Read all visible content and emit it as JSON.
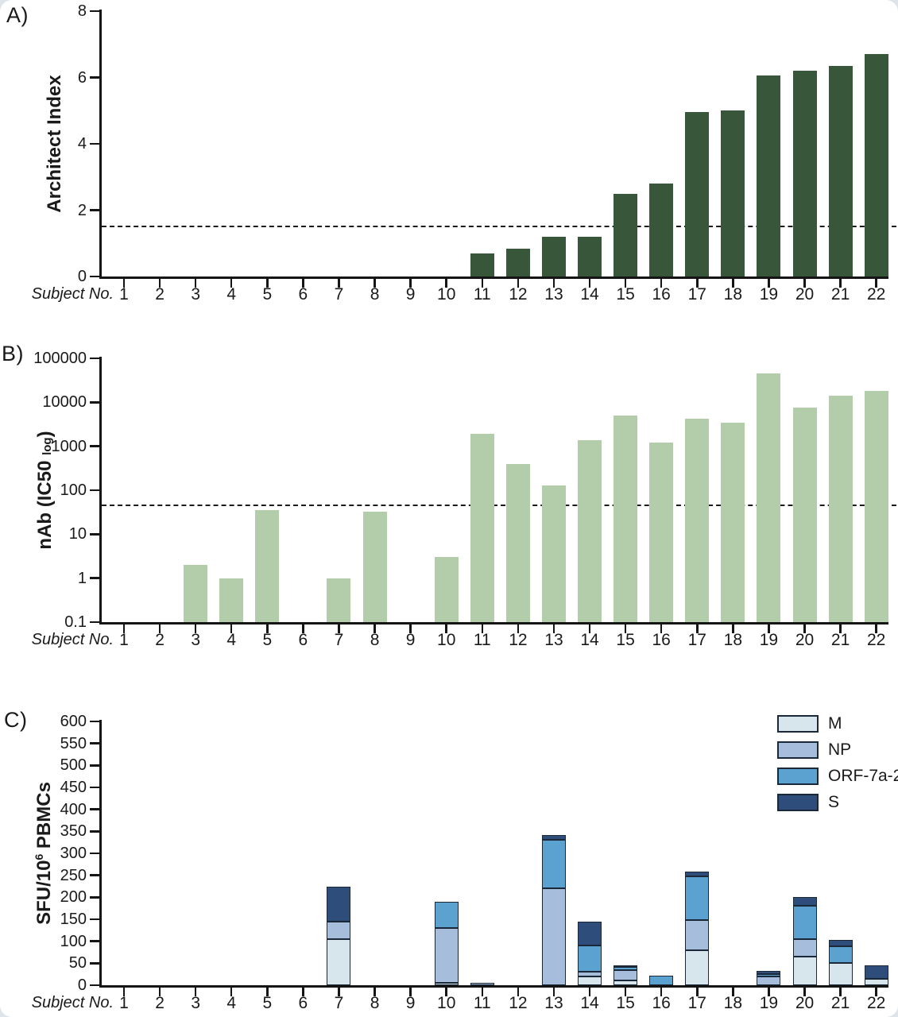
{
  "chart_data": [
    {
      "id": "A",
      "panel_label": "A)",
      "type": "bar",
      "ylabel_parts": [
        {
          "t": "Architect Index"
        }
      ],
      "xlabel": "Subject No.",
      "categories": [
        "1",
        "2",
        "3",
        "4",
        "5",
        "6",
        "7",
        "8",
        "9",
        "10",
        "11",
        "12",
        "13",
        "14",
        "15",
        "16",
        "17",
        "18",
        "19",
        "20",
        "21",
        "22"
      ],
      "values": [
        0,
        0,
        0,
        0,
        0,
        0,
        0,
        0,
        0,
        0,
        0.7,
        0.85,
        1.2,
        1.2,
        2.5,
        2.8,
        4.95,
        5.0,
        6.05,
        6.2,
        6.35,
        6.7
      ],
      "ylim": [
        0,
        8
      ],
      "yscale": "linear",
      "yticks": [
        {
          "label": "8",
          "value": 8
        },
        {
          "label": "6",
          "value": 6
        },
        {
          "label": "4",
          "value": 4
        },
        {
          "label": "2",
          "value": 2
        },
        {
          "label": "0",
          "value": 0
        }
      ],
      "threshold": 1.5,
      "bar_color": "#38573a",
      "grid": false,
      "legend_position": "none"
    },
    {
      "id": "B",
      "panel_label": "B)",
      "type": "bar",
      "ylabel_parts": [
        {
          "t": "nAb (IC50 "
        },
        {
          "t": "log",
          "style": "small"
        },
        {
          "t": ")"
        }
      ],
      "xlabel": "Subject No.",
      "categories": [
        "1",
        "2",
        "3",
        "4",
        "5",
        "6",
        "7",
        "8",
        "9",
        "10",
        "11",
        "12",
        "13",
        "14",
        "15",
        "16",
        "17",
        "18",
        "19",
        "20",
        "21",
        "22"
      ],
      "values": [
        0,
        0,
        2,
        1,
        35,
        0,
        1,
        32,
        0,
        3,
        1900,
        400,
        130,
        1400,
        5000,
        1200,
        4300,
        3400,
        45000,
        7500,
        14000,
        18000
      ],
      "ylim": [
        0.1,
        100000
      ],
      "yscale": "log",
      "yticks": [
        {
          "label": "100000",
          "value": 100000
        },
        {
          "label": "10000",
          "value": 10000
        },
        {
          "label": "1000",
          "value": 1000
        },
        {
          "label": "100",
          "value": 100
        },
        {
          "label": "10",
          "value": 10
        },
        {
          "label": "1",
          "value": 1
        },
        {
          "label": "0.1",
          "value": 0.1
        }
      ],
      "threshold": 45,
      "bar_color": "#b3cdab",
      "grid": false,
      "legend_position": "none"
    },
    {
      "id": "C",
      "panel_label": "C)",
      "type": "stacked-bar",
      "ylabel_parts": [
        {
          "t": "SFU/10"
        },
        {
          "t": "6",
          "style": "sup"
        },
        {
          "t": " PBMCs"
        }
      ],
      "xlabel": "Subject No.",
      "categories": [
        "1",
        "2",
        "3",
        "4",
        "5",
        "6",
        "7",
        "8",
        "9",
        "10",
        "11",
        "12",
        "13",
        "14",
        "15",
        "16",
        "17",
        "18",
        "19",
        "20",
        "21",
        "22"
      ],
      "series": [
        {
          "name": "M",
          "color": "#d7e5ec",
          "values": [
            0,
            0,
            0,
            0,
            0,
            0,
            105,
            0,
            0,
            5,
            0,
            0,
            0,
            20,
            10,
            0,
            80,
            0,
            0,
            65,
            50,
            15
          ]
        },
        {
          "name": "NP",
          "color": "#a6bedb",
          "values": [
            0,
            0,
            0,
            0,
            0,
            0,
            40,
            0,
            0,
            125,
            5,
            0,
            220,
            10,
            25,
            0,
            68,
            0,
            20,
            40,
            0,
            0
          ]
        },
        {
          "name": "ORF-7a-2",
          "color": "#5ba2d0",
          "values": [
            0,
            0,
            0,
            0,
            0,
            0,
            0,
            0,
            0,
            60,
            0,
            0,
            110,
            60,
            7,
            22,
            100,
            0,
            5,
            75,
            38,
            0
          ]
        },
        {
          "name": "S",
          "color": "#2e4d7b",
          "values": [
            0,
            0,
            0,
            0,
            0,
            0,
            80,
            0,
            0,
            0,
            0,
            0,
            12,
            55,
            3,
            0,
            10,
            0,
            7,
            20,
            15,
            30
          ]
        }
      ],
      "ylim": [
        0,
        600
      ],
      "yscale": "linear",
      "yticks": [
        {
          "label": "600",
          "value": 600
        },
        {
          "label": "550",
          "value": 550
        },
        {
          "label": "500",
          "value": 500
        },
        {
          "label": "450",
          "value": 450
        },
        {
          "label": "400",
          "value": 400
        },
        {
          "label": "350",
          "value": 350
        },
        {
          "label": "300",
          "value": 300
        },
        {
          "label": "250",
          "value": 250
        },
        {
          "label": "200",
          "value": 200
        },
        {
          "label": "150",
          "value": 150
        },
        {
          "label": "100",
          "value": 100
        },
        {
          "label": "50",
          "value": 50
        },
        {
          "label": "0",
          "value": 0
        }
      ],
      "threshold": null,
      "grid": false,
      "legend_position": "top-right"
    }
  ],
  "colors": {
    "axis": "#151515",
    "outline": "#1b2838",
    "chartA_bar": "#38573a",
    "chartB_bar": "#b3cdab",
    "card_bg": "#ffffff",
    "page_bg": "#dde4ea"
  }
}
